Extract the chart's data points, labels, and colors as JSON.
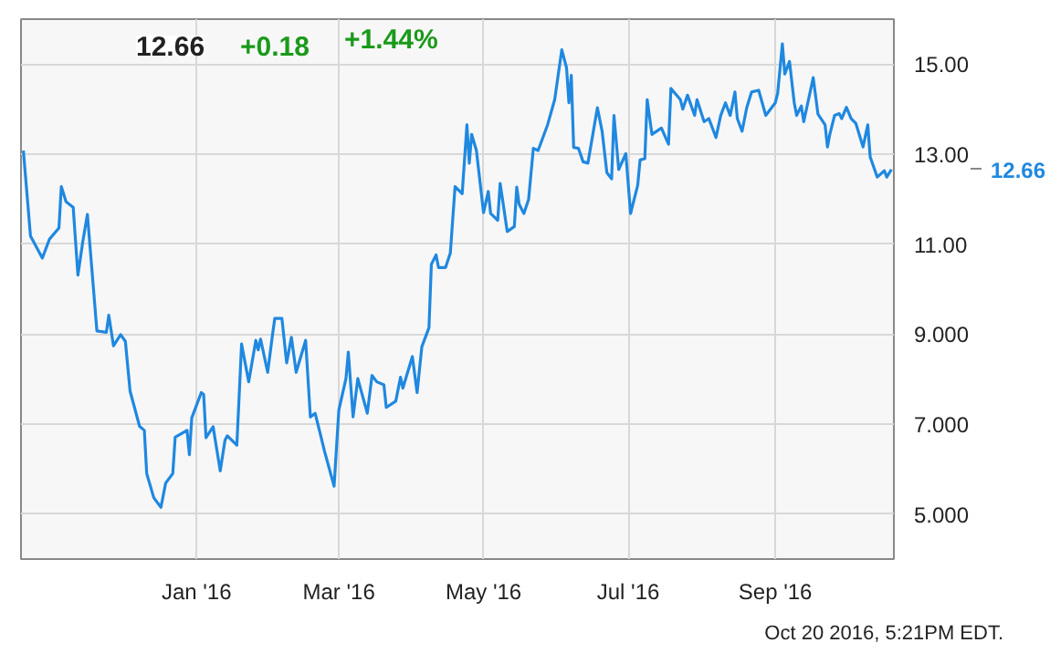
{
  "chart_data": {
    "type": "line",
    "x": [
      "2015-10-20",
      "2015-10-23",
      "2015-10-28",
      "2015-10-31",
      "2015-11-04",
      "2015-11-05",
      "2015-11-07",
      "2015-11-10",
      "2015-11-12",
      "2015-11-14",
      "2015-11-16",
      "2015-11-20",
      "2015-11-24",
      "2015-11-25",
      "2015-11-27",
      "2015-11-30",
      "2015-12-02",
      "2015-12-04",
      "2015-12-08",
      "2015-12-10",
      "2015-12-11",
      "2015-12-14",
      "2015-12-17",
      "2015-12-19",
      "2015-12-22",
      "2015-12-23",
      "2015-12-28",
      "2015-12-29",
      "2015-12-30",
      "2016-01-03",
      "2016-01-04",
      "2016-01-05",
      "2016-01-08",
      "2016-01-11",
      "2016-01-13",
      "2016-01-14",
      "2016-01-18",
      "2016-01-20",
      "2016-01-23",
      "2016-01-26",
      "2016-01-27",
      "2016-01-28",
      "2016-01-31",
      "2016-02-02",
      "2016-02-03",
      "2016-02-06",
      "2016-02-08",
      "2016-02-10",
      "2016-02-12",
      "2016-02-16",
      "2016-02-18",
      "2016-02-20",
      "2016-02-22",
      "2016-02-24",
      "2016-02-28",
      "2016-03-01",
      "2016-03-04",
      "2016-03-05",
      "2016-03-07",
      "2016-03-09",
      "2016-03-13",
      "2016-03-15",
      "2016-03-17",
      "2016-03-20",
      "2016-03-21",
      "2016-03-25",
      "2016-03-27",
      "2016-03-28",
      "2016-04-01",
      "2016-04-03",
      "2016-04-05",
      "2016-04-08",
      "2016-04-09",
      "2016-04-11",
      "2016-04-12",
      "2016-04-15",
      "2016-04-17",
      "2016-04-19",
      "2016-04-22",
      "2016-04-24",
      "2016-04-25",
      "2016-04-26",
      "2016-04-28",
      "2016-05-01",
      "2016-05-03",
      "2016-05-04",
      "2016-05-07",
      "2016-05-08",
      "2016-05-11",
      "2016-05-14",
      "2016-05-15",
      "2016-05-16",
      "2016-05-18",
      "2016-05-20",
      "2016-05-22",
      "2016-05-24",
      "2016-05-28",
      "2016-05-31",
      "2016-06-03",
      "2016-06-05",
      "2016-06-06",
      "2016-06-07",
      "2016-06-08",
      "2016-06-10",
      "2016-06-12",
      "2016-06-14",
      "2016-06-18",
      "2016-06-20",
      "2016-06-22",
      "2016-06-24",
      "2016-06-25",
      "2016-06-27",
      "2016-06-30",
      "2016-07-02",
      "2016-07-05",
      "2016-07-06",
      "2016-07-08",
      "2016-07-09",
      "2016-07-11",
      "2016-07-15",
      "2016-07-18",
      "2016-07-19",
      "2016-07-23",
      "2016-07-24",
      "2016-07-26",
      "2016-07-29",
      "2016-07-30",
      "2016-08-02",
      "2016-08-04",
      "2016-08-07",
      "2016-08-09",
      "2016-08-11",
      "2016-08-13",
      "2016-08-15",
      "2016-08-16",
      "2016-08-18",
      "2016-08-20",
      "2016-08-22",
      "2016-08-25",
      "2016-08-28",
      "2016-09-01",
      "2016-09-02",
      "2016-09-04",
      "2016-09-05",
      "2016-09-07",
      "2016-09-09",
      "2016-09-10",
      "2016-09-12",
      "2016-09-13",
      "2016-09-17",
      "2016-09-19",
      "2016-09-22",
      "2016-09-23",
      "2016-09-24",
      "2016-09-26",
      "2016-09-28",
      "2016-09-29",
      "2016-10-01",
      "2016-10-03",
      "2016-10-05",
      "2016-10-08",
      "2016-10-10",
      "2016-10-11",
      "2016-10-14",
      "2016-10-17",
      "2016-10-18",
      "2016-10-20"
    ],
    "series": [
      {
        "color": "#1f88e0",
        "values": [
          13.08,
          11.18,
          10.69,
          11.11,
          11.36,
          12.28,
          11.94,
          11.82,
          10.31,
          11.04,
          11.66,
          9.07,
          9.04,
          9.42,
          8.74,
          8.99,
          8.84,
          7.73,
          6.95,
          6.86,
          5.9,
          5.36,
          5.15,
          5.69,
          5.9,
          6.71,
          6.86,
          6.32,
          7.14,
          7.7,
          7.66,
          6.7,
          6.94,
          5.96,
          6.64,
          6.74,
          6.53,
          8.78,
          7.94,
          8.86,
          8.65,
          8.89,
          8.15,
          8.97,
          9.35,
          9.35,
          8.36,
          8.93,
          8.15,
          8.86,
          7.16,
          7.24,
          6.82,
          6.39,
          5.62,
          7.31,
          8.01,
          8.6,
          7.16,
          8.01,
          7.24,
          8.08,
          7.94,
          7.87,
          7.37,
          7.51,
          8.04,
          7.8,
          8.5,
          7.7,
          8.72,
          9.14,
          10.55,
          10.76,
          10.48,
          10.48,
          10.8,
          12.28,
          12.12,
          13.65,
          12.8,
          13.44,
          13.08,
          11.7,
          12.17,
          11.68,
          11.53,
          12.35,
          11.28,
          11.39,
          12.27,
          11.89,
          11.68,
          11.99,
          13.13,
          13.08,
          13.65,
          14.21,
          15.32,
          14.92,
          14.14,
          14.75,
          13.15,
          13.13,
          12.83,
          12.8,
          14.03,
          13.51,
          12.59,
          12.45,
          13.86,
          12.66,
          13.01,
          11.68,
          12.31,
          12.87,
          12.9,
          14.21,
          13.44,
          13.58,
          13.22,
          14.46,
          14.21,
          14.0,
          14.31,
          13.86,
          14.21,
          13.72,
          13.79,
          13.37,
          13.86,
          14.14,
          13.86,
          14.38,
          13.79,
          13.51,
          14.04,
          14.38,
          14.42,
          13.86,
          14.14,
          14.35,
          15.45,
          14.78,
          15.06,
          14.14,
          13.86,
          14.07,
          13.72,
          14.7,
          13.89,
          13.65,
          13.16,
          13.44,
          13.86,
          13.9,
          13.79,
          14.04,
          13.79,
          13.68,
          13.16,
          13.65,
          12.94,
          12.49,
          12.63,
          12.49,
          12.66
        ]
      }
    ],
    "xlim": [
      "2015-10-19",
      "2016-10-21"
    ],
    "xticks": [
      {
        "value": "2016-01-01",
        "label": "Jan '16"
      },
      {
        "value": "2016-03-01",
        "label": "Mar '16"
      },
      {
        "value": "2016-05-01",
        "label": "May '16"
      },
      {
        "value": "2016-07-01",
        "label": "Jul '16"
      },
      {
        "value": "2016-09-01",
        "label": "Sep '16"
      }
    ],
    "ylim": [
      4,
      16
    ],
    "yticks": [
      {
        "value": 5,
        "label": "5.000"
      },
      {
        "value": 7,
        "label": "7.000"
      },
      {
        "value": 9,
        "label": "9.000"
      },
      {
        "value": 11,
        "label": "11.00"
      },
      {
        "value": 13,
        "label": "13.00"
      },
      {
        "value": 15,
        "label": "15.00"
      }
    ],
    "grid": true,
    "tick_labels": "xy",
    "annotations": [
      "12.66",
      "+0.18",
      "+1.44%",
      "12.66",
      "Oct 20 2016, 5:21PM EDT."
    ]
  }
}
